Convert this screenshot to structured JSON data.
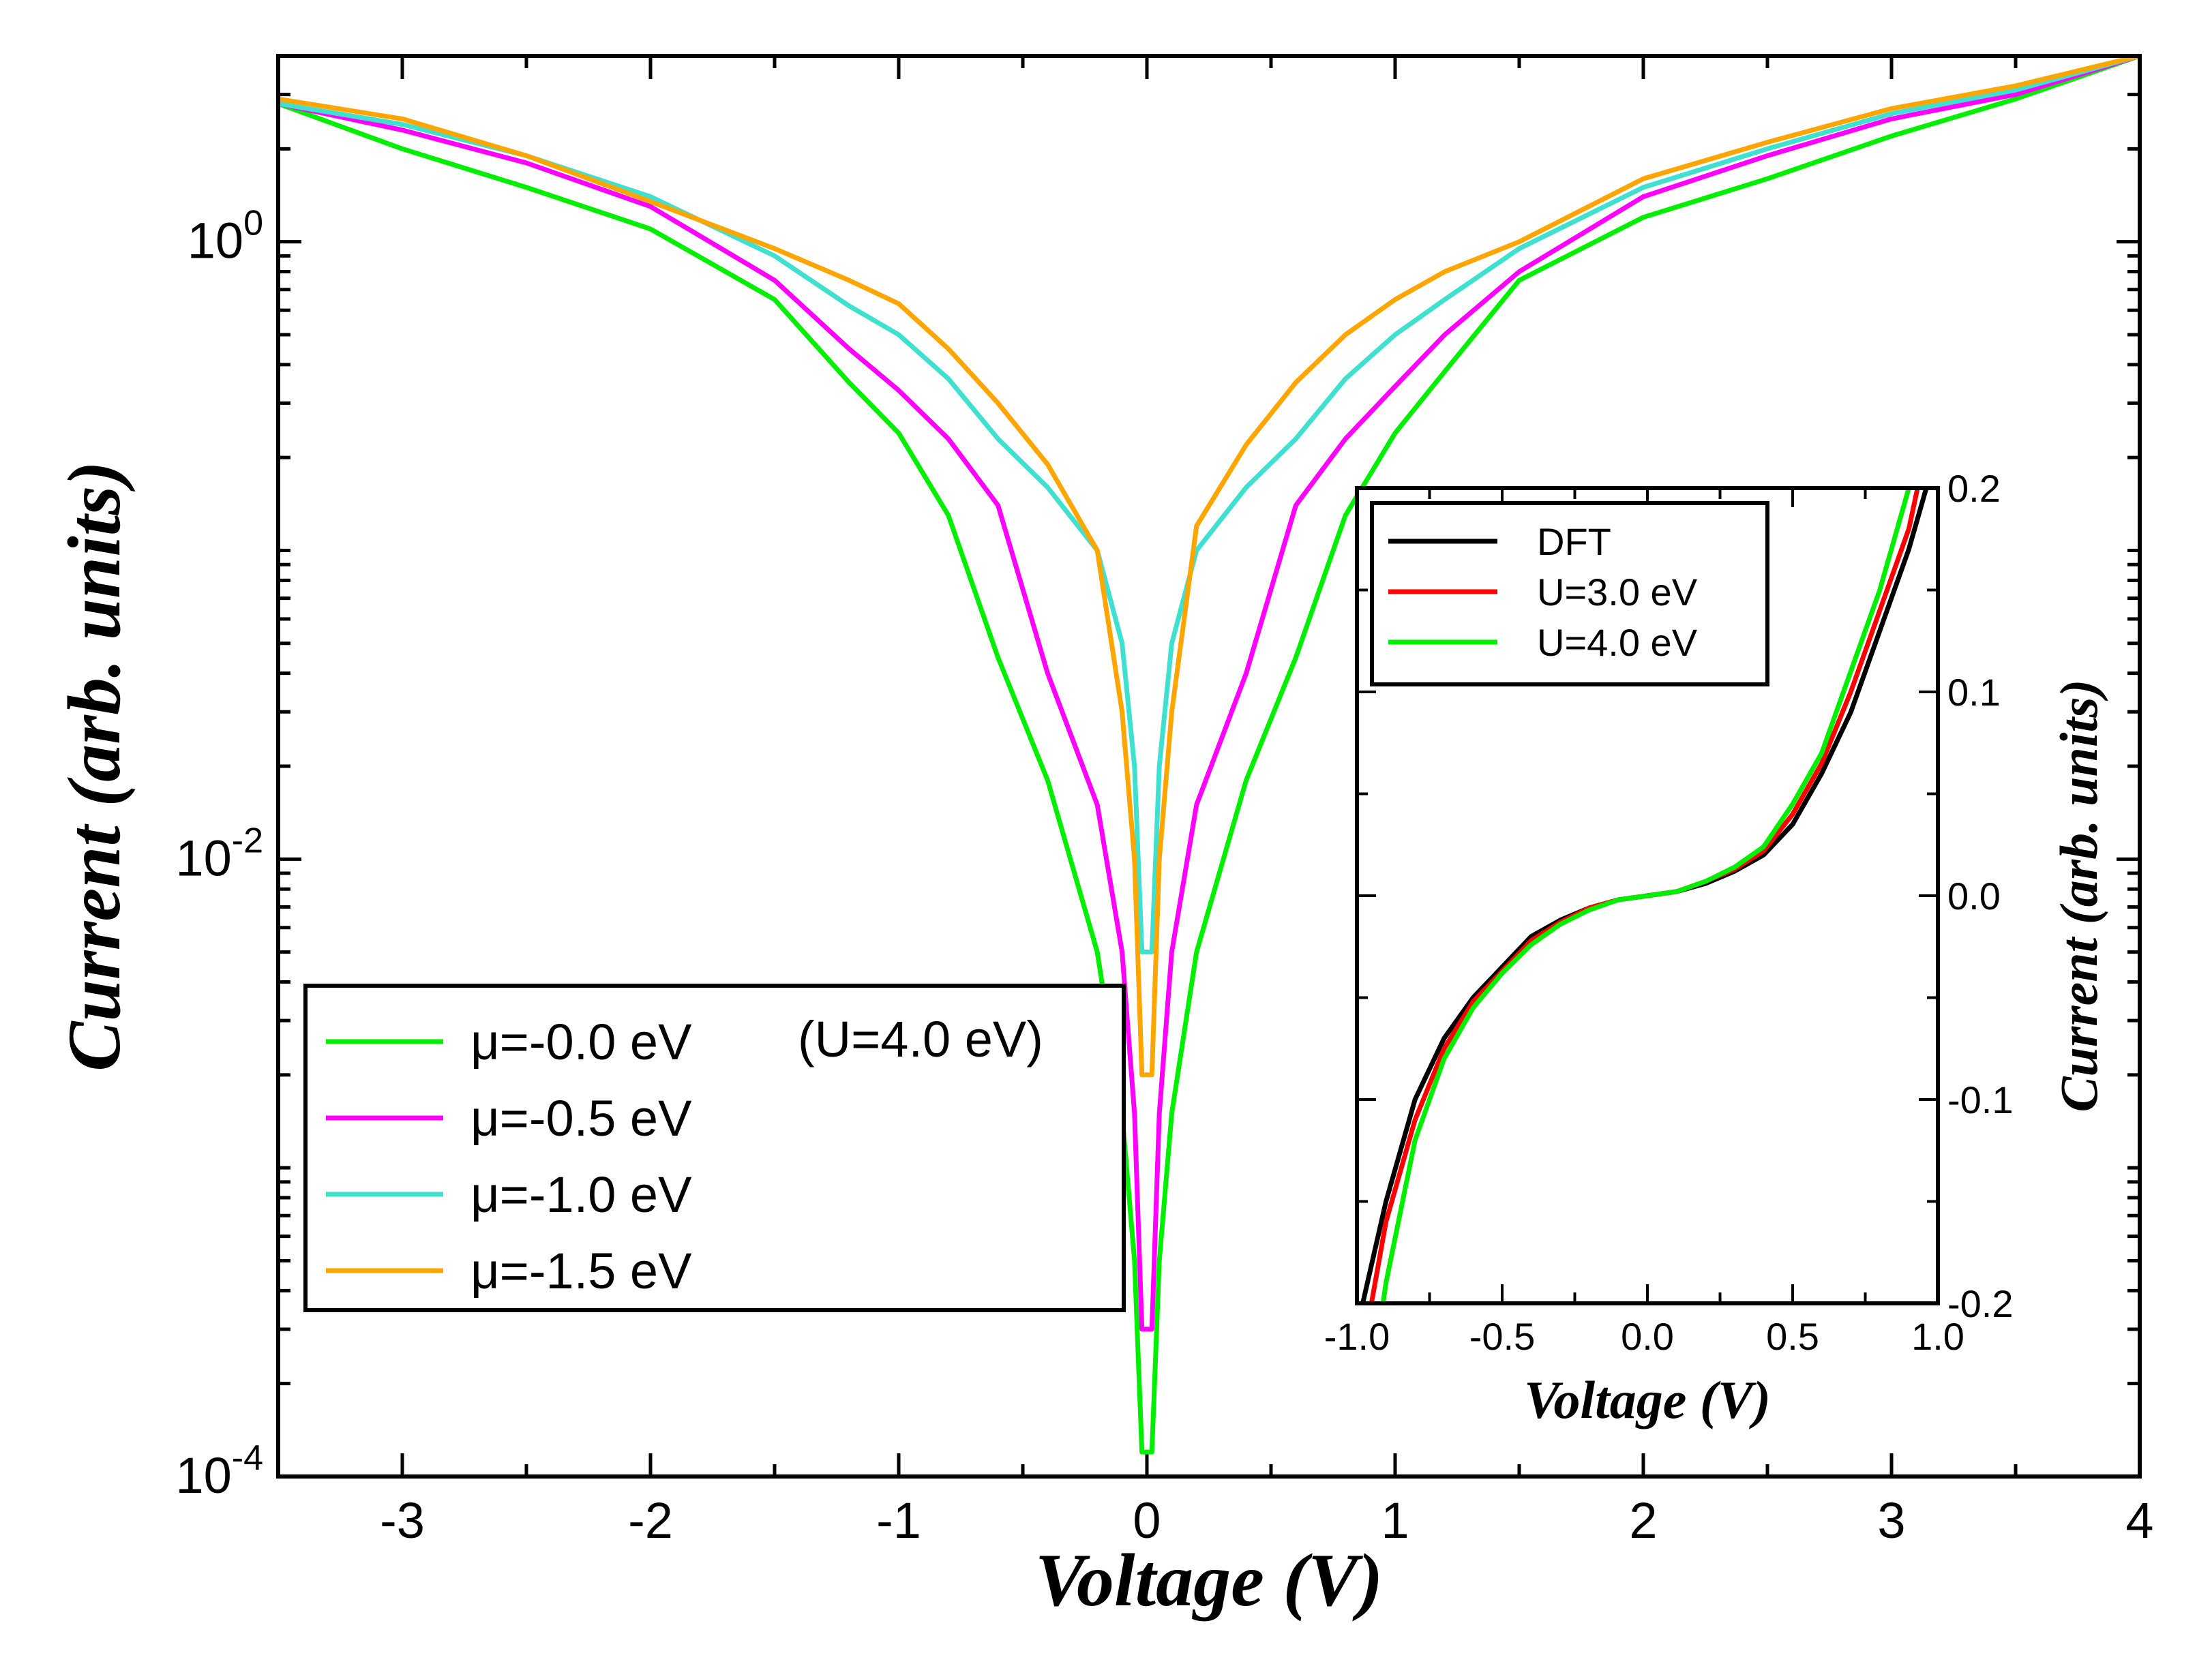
{
  "chart_data": [
    {
      "id": "main",
      "type": "line",
      "xlabel": "Voltage (V)",
      "ylabel": "Current (arb. units)",
      "yscale": "log",
      "xlim": [
        -3.5,
        4
      ],
      "ylim": [
        0.0001,
        4
      ],
      "x_ticks": [
        -3,
        -2,
        -1,
        0,
        1,
        2,
        3,
        4
      ],
      "x_tick_labels": [
        "-3",
        "-2",
        "-1",
        "0",
        "1",
        "2",
        "3",
        "4"
      ],
      "y_ticks": [
        {
          "value": 1,
          "base": "10",
          "exp": "0"
        },
        {
          "value": 0.01,
          "base": "10",
          "exp": "-2"
        },
        {
          "value": 0.0001,
          "base": "10",
          "exp": "-4"
        }
      ],
      "legend": {
        "placement": "lower-left",
        "note": "(U=4.0 eV)"
      },
      "series": [
        {
          "name": "μ=-0.0 eV",
          "color": "#00ee00",
          "x": [
            -3.5,
            -3,
            -2.5,
            -2,
            -1.5,
            -1.2,
            -1,
            -0.8,
            -0.6,
            -0.4,
            -0.2,
            -0.1,
            -0.05,
            -0.02,
            0.02,
            0.05,
            0.1,
            0.2,
            0.4,
            0.6,
            0.8,
            1,
            1.2,
            1.5,
            2,
            2.5,
            3,
            3.5,
            4
          ],
          "y": [
            2.8,
            2.0,
            1.5,
            1.1,
            0.65,
            0.35,
            0.24,
            0.13,
            0.045,
            0.018,
            0.005,
            0.0015,
            0.0005,
            0.00012,
            0.00012,
            0.0005,
            0.0015,
            0.005,
            0.018,
            0.045,
            0.13,
            0.24,
            0.38,
            0.75,
            1.2,
            1.6,
            2.2,
            2.9,
            4.0
          ]
        },
        {
          "name": "μ=-0.5 eV",
          "color": "#ff00ff",
          "x": [
            -3.5,
            -3,
            -2.5,
            -2,
            -1.5,
            -1.2,
            -1,
            -0.8,
            -0.6,
            -0.4,
            -0.2,
            -0.1,
            -0.05,
            -0.02,
            0.02,
            0.05,
            0.1,
            0.2,
            0.4,
            0.6,
            0.8,
            1,
            1.2,
            1.5,
            2,
            2.5,
            3,
            3.5,
            4
          ],
          "y": [
            2.8,
            2.3,
            1.8,
            1.3,
            0.75,
            0.45,
            0.33,
            0.23,
            0.14,
            0.04,
            0.015,
            0.005,
            0.0015,
            0.0003,
            0.0003,
            0.0015,
            0.005,
            0.015,
            0.04,
            0.14,
            0.23,
            0.34,
            0.5,
            0.8,
            1.4,
            1.9,
            2.5,
            3.0,
            4.0
          ]
        },
        {
          "name": "μ=-1.0 eV",
          "color": "#40e0d0",
          "x": [
            -3.5,
            -3,
            -2.5,
            -2,
            -1.5,
            -1.2,
            -1,
            -0.8,
            -0.6,
            -0.4,
            -0.2,
            -0.1,
            -0.05,
            -0.02,
            0.02,
            0.05,
            0.1,
            0.2,
            0.4,
            0.6,
            0.8,
            1,
            1.2,
            1.5,
            2,
            2.5,
            3,
            3.5,
            4
          ],
          "y": [
            2.8,
            2.4,
            1.9,
            1.4,
            0.9,
            0.62,
            0.5,
            0.36,
            0.23,
            0.16,
            0.1,
            0.05,
            0.02,
            0.005,
            0.005,
            0.02,
            0.05,
            0.1,
            0.16,
            0.23,
            0.36,
            0.5,
            0.65,
            0.95,
            1.5,
            2.0,
            2.6,
            3.1,
            4.0
          ]
        },
        {
          "name": "μ=-1.5 eV",
          "color": "#ffa500",
          "x": [
            -3.5,
            -3,
            -2.5,
            -2,
            -1.5,
            -1.2,
            -1,
            -0.8,
            -0.6,
            -0.4,
            -0.2,
            -0.1,
            -0.05,
            -0.02,
            0.02,
            0.05,
            0.1,
            0.2,
            0.4,
            0.6,
            0.8,
            1,
            1.2,
            1.5,
            2,
            2.5,
            3,
            3.5,
            4
          ],
          "y": [
            2.9,
            2.5,
            1.9,
            1.35,
            0.95,
            0.75,
            0.63,
            0.45,
            0.3,
            0.19,
            0.1,
            0.03,
            0.01,
            0.002,
            0.002,
            0.01,
            0.03,
            0.12,
            0.22,
            0.35,
            0.5,
            0.65,
            0.8,
            1.0,
            1.6,
            2.1,
            2.7,
            3.2,
            4.0
          ]
        }
      ]
    },
    {
      "id": "inset",
      "type": "line",
      "xlabel": "Voltage (V)",
      "ylabel": "Current (arb. units)",
      "xlim": [
        -1.0,
        1.0
      ],
      "ylim": [
        -0.2,
        0.2
      ],
      "x_ticks": [
        -1.0,
        -0.5,
        0.0,
        0.5,
        1.0
      ],
      "x_tick_labels": [
        "-1.0",
        "-0.5",
        "0.0",
        "0.5",
        "1.0"
      ],
      "y_ticks": [
        0.2,
        0.1,
        0.0,
        -0.1,
        -0.2
      ],
      "y_tick_labels": [
        "0.2",
        "0.1",
        "0.0",
        "-0.1",
        "-0.2"
      ],
      "legend": {
        "placement": "top-left"
      },
      "series": [
        {
          "name": "DFT",
          "color": "#000000",
          "x": [
            -0.98,
            -0.9,
            -0.8,
            -0.7,
            -0.6,
            -0.5,
            -0.4,
            -0.3,
            -0.2,
            -0.1,
            0,
            0.1,
            0.2,
            0.3,
            0.4,
            0.5,
            0.6,
            0.7,
            0.8,
            0.9,
            0.96
          ],
          "y": [
            -0.2,
            -0.15,
            -0.1,
            -0.07,
            -0.05,
            -0.035,
            -0.02,
            -0.012,
            -0.006,
            -0.002,
            0,
            0.002,
            0.006,
            0.012,
            0.02,
            0.035,
            0.06,
            0.09,
            0.13,
            0.17,
            0.2
          ]
        },
        {
          "name": "U=3.0 eV",
          "color": "#ff0000",
          "x": [
            -0.95,
            -0.9,
            -0.8,
            -0.7,
            -0.6,
            -0.5,
            -0.4,
            -0.3,
            -0.2,
            -0.1,
            0,
            0.1,
            0.2,
            0.3,
            0.4,
            0.5,
            0.6,
            0.7,
            0.8,
            0.9,
            0.93
          ],
          "y": [
            -0.2,
            -0.16,
            -0.11,
            -0.075,
            -0.052,
            -0.037,
            -0.022,
            -0.013,
            -0.006,
            -0.002,
            0,
            0.002,
            0.007,
            0.013,
            0.022,
            0.04,
            0.065,
            0.1,
            0.14,
            0.18,
            0.2
          ]
        },
        {
          "name": "U=4.0 eV",
          "color": "#00ee00",
          "x": [
            -0.91,
            -0.9,
            -0.8,
            -0.7,
            -0.6,
            -0.5,
            -0.4,
            -0.3,
            -0.2,
            -0.1,
            0,
            0.1,
            0.2,
            0.3,
            0.4,
            0.5,
            0.6,
            0.7,
            0.8,
            0.9
          ],
          "y": [
            -0.2,
            -0.19,
            -0.12,
            -0.08,
            -0.055,
            -0.038,
            -0.024,
            -0.014,
            -0.007,
            -0.002,
            0,
            0.002,
            0.007,
            0.014,
            0.024,
            0.045,
            0.07,
            0.11,
            0.15,
            0.2
          ]
        }
      ]
    }
  ]
}
